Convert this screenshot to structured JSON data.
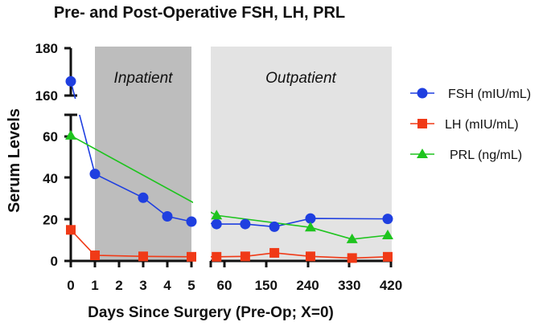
{
  "chart_data": {
    "type": "line",
    "title": "Pre- and Post-Operative FSH, LH, PRL",
    "xlabel": "Days Since Surgery (Pre-Op; X=0)",
    "ylabel": "Serum Levels",
    "x_axis_segments": [
      {
        "range": [
          0,
          5
        ],
        "ticks": [
          0,
          1,
          2,
          3,
          4,
          5
        ]
      },
      {
        "range": [
          30,
          420
        ],
        "ticks": [
          60,
          150,
          240,
          330,
          420
        ]
      }
    ],
    "y_axis_segments": [
      {
        "range": [
          0,
          70
        ],
        "ticks": [
          0,
          20,
          40,
          60
        ]
      },
      {
        "range": [
          160,
          180
        ],
        "ticks": [
          160,
          180
        ]
      }
    ],
    "regions": [
      {
        "label": "Inpatient",
        "x_range": [
          1,
          5
        ],
        "color": "#bdbdbd"
      },
      {
        "label": "Outpatient",
        "x_range": [
          30,
          420
        ],
        "color": "#e3e3e3"
      }
    ],
    "legend_position": "right",
    "series": [
      {
        "name": "FSH (mIU/mL)",
        "color": "#1f3fe0",
        "marker": "circle",
        "x": [
          0,
          1,
          3,
          4,
          5,
          43,
          105,
          168,
          246,
          413
        ],
        "y": [
          166,
          42,
          30.5,
          21.5,
          19,
          17.8,
          17.8,
          16.5,
          20.5,
          20.3
        ]
      },
      {
        "name": "LH (mIU/mL)",
        "color": "#f03a17",
        "marker": "square",
        "x": [
          0,
          1,
          3,
          5,
          43,
          105,
          168,
          246,
          336,
          413
        ],
        "y": [
          15,
          2.7,
          2.2,
          2,
          2,
          2.2,
          3.9,
          2.2,
          1.4,
          2
        ]
      },
      {
        "name": "PRL (ng/mL)",
        "color": "#1ec41e",
        "marker": "triangle",
        "x": [
          0,
          43,
          246,
          336,
          413
        ],
        "y": [
          60.5,
          22,
          16.2,
          10.5,
          12.4
        ]
      }
    ]
  }
}
